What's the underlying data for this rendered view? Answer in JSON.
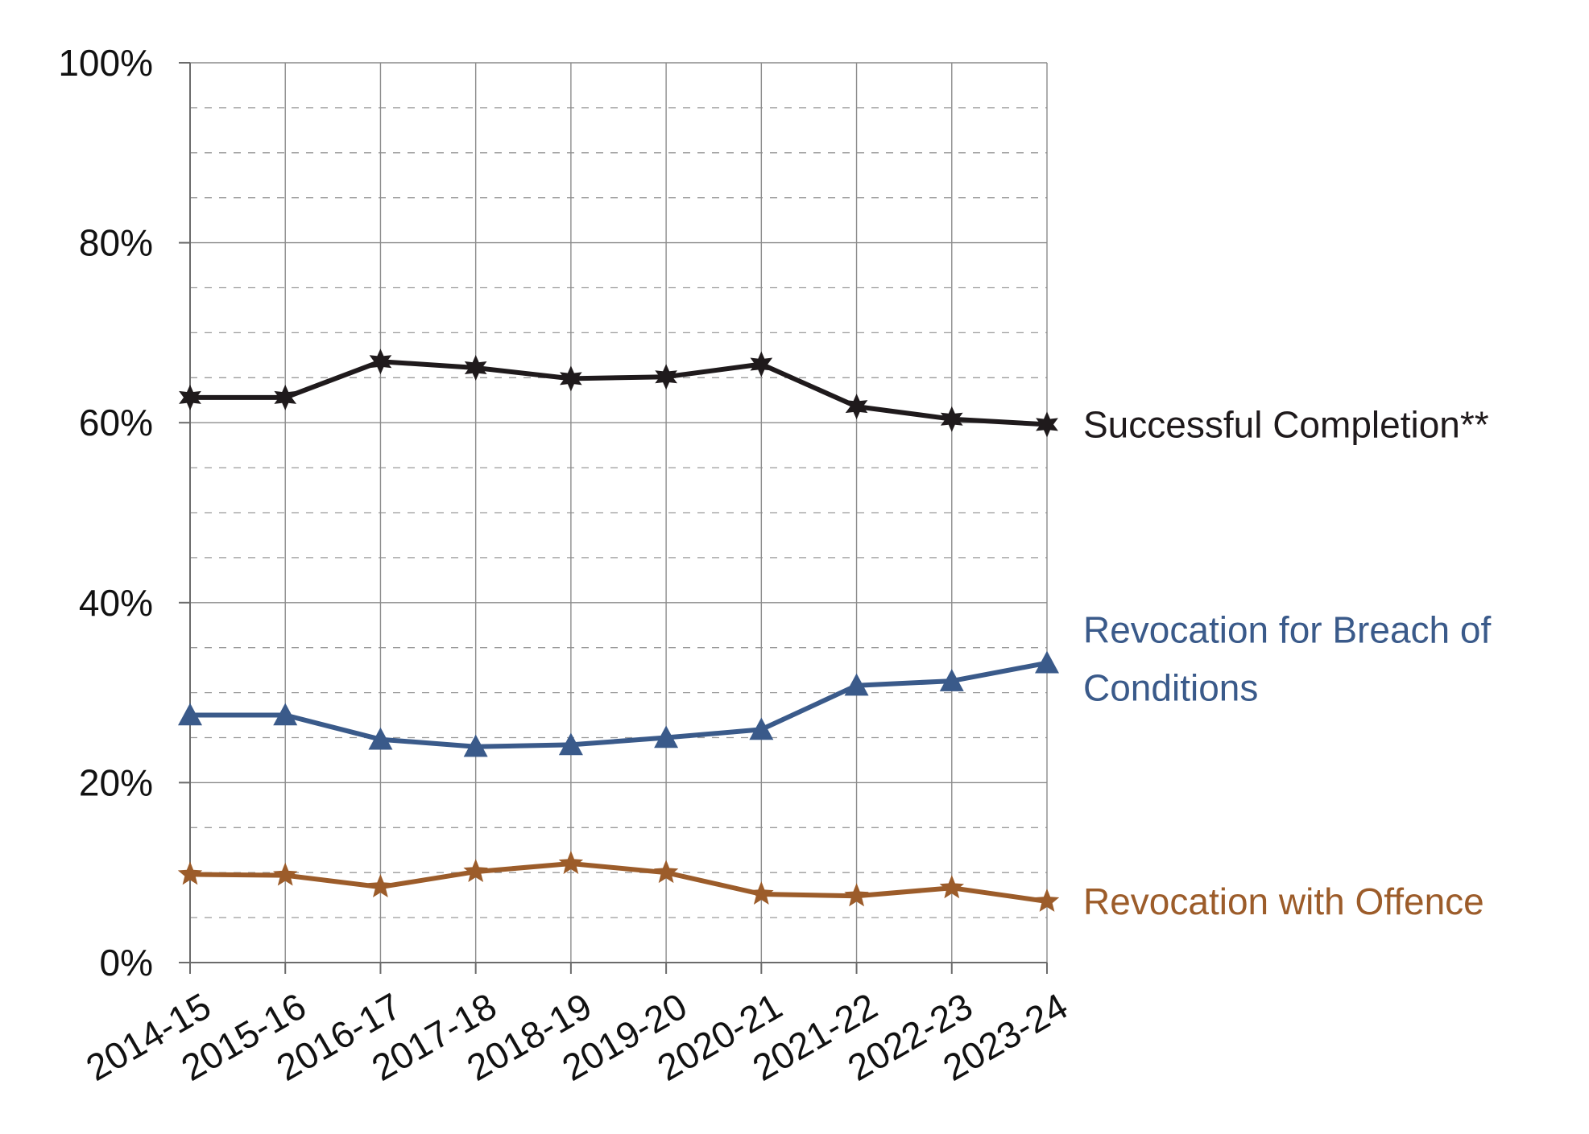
{
  "chart_data": {
    "type": "line",
    "categories": [
      "2014-15",
      "2015-16",
      "2016-17",
      "2017-18",
      "2018-19",
      "2019-20",
      "2020-21",
      "2021-22",
      "2022-23",
      "2023-24"
    ],
    "ylim": [
      0,
      100
    ],
    "y_ticks": [
      "0%",
      "20%",
      "40%",
      "60%",
      "80%",
      "100%"
    ],
    "grid": true,
    "legend": "right, inline labels at line ends",
    "series": [
      {
        "name": "Successful Completion**",
        "label_lines": [
          "Successful Completion**"
        ],
        "color": "#1f1a1c",
        "marker": "diamond-star",
        "values": [
          62.8,
          62.8,
          66.8,
          66.1,
          64.9,
          65.1,
          66.5,
          61.8,
          60.4,
          59.8
        ]
      },
      {
        "name": "Revocation for Breach of Conditions",
        "label_lines": [
          "Revocation for Breach of",
          "Conditions"
        ],
        "color": "#3a5a8a",
        "marker": "triangle",
        "values": [
          27.5,
          27.5,
          24.8,
          24.0,
          24.2,
          25.0,
          25.9,
          30.8,
          31.3,
          33.3
        ]
      },
      {
        "name": "Revocation with Offence",
        "label_lines": [
          "Revocation with Offence"
        ],
        "color": "#9c5c2a",
        "marker": "star",
        "values": [
          9.8,
          9.7,
          8.4,
          10.1,
          11.0,
          10.0,
          7.6,
          7.4,
          8.3,
          6.8
        ]
      }
    ]
  }
}
